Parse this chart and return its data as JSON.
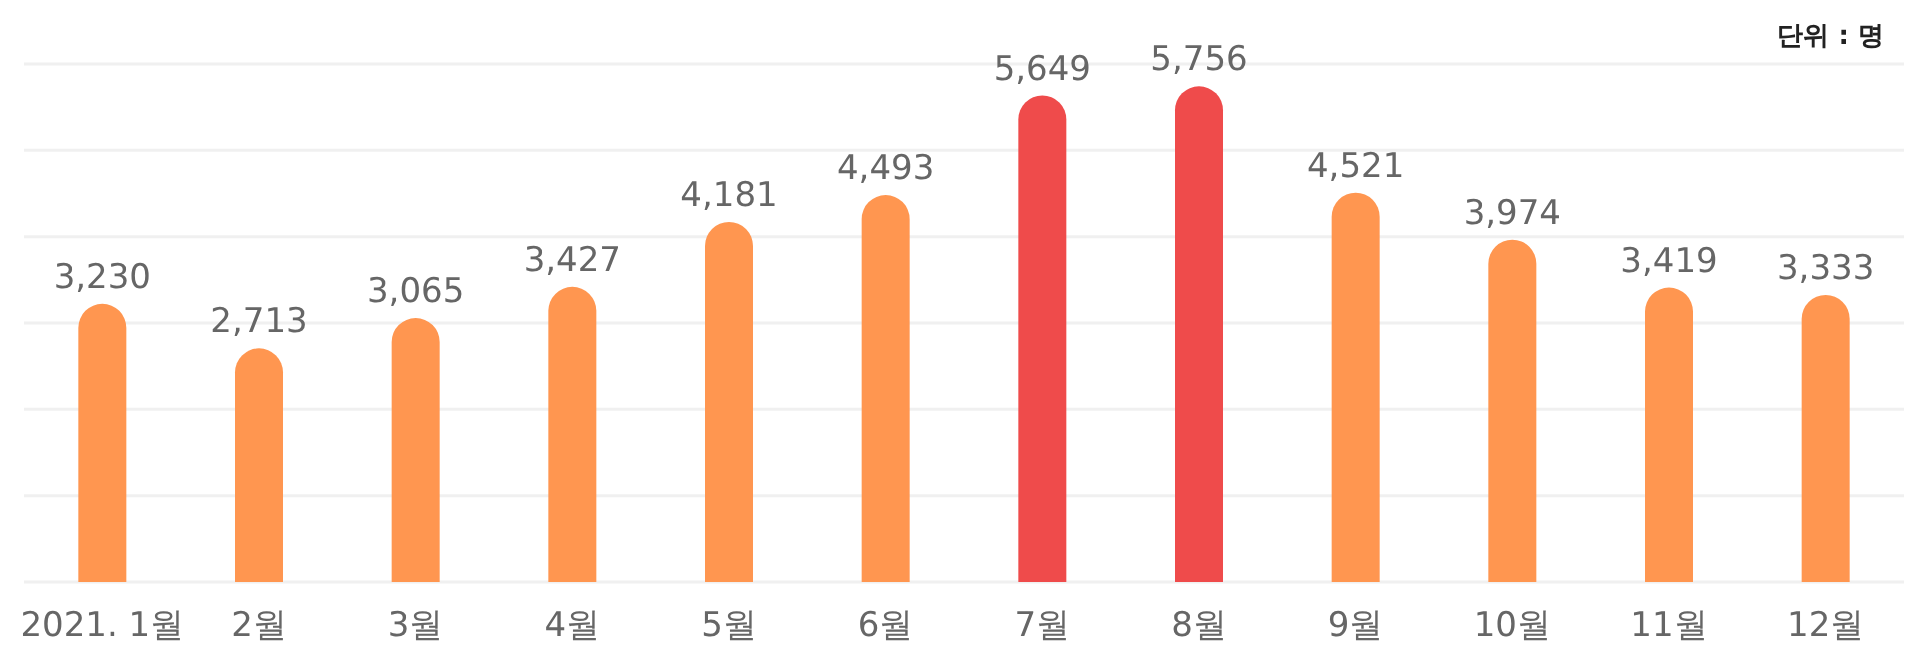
{
  "chart_data": {
    "type": "bar",
    "categories": [
      "2021. 1월",
      "2월",
      "3월",
      "4월",
      "5월",
      "6월",
      "7월",
      "8월",
      "9월",
      "10월",
      "11월",
      "12월"
    ],
    "values": [
      3230,
      2713,
      3065,
      3427,
      4181,
      4493,
      5649,
      5756,
      4521,
      3974,
      3419,
      3333
    ],
    "colors": [
      "#ff9650",
      "#ff9650",
      "#ff9650",
      "#ff9650",
      "#ff9650",
      "#ff9650",
      "#ef4b4b",
      "#ef4b4b",
      "#ff9650",
      "#ff9650",
      "#ff9650",
      "#ff9650"
    ],
    "value_labels": [
      "3,230",
      "2,713",
      "3,065",
      "3,427",
      "4,181",
      "4,493",
      "5,649",
      "5,756",
      "4,521",
      "3,974",
      "3,419",
      "3,333"
    ],
    "grid": "y",
    "tick_labels": "x",
    "annotations": [
      "단위 : 명"
    ]
  }
}
